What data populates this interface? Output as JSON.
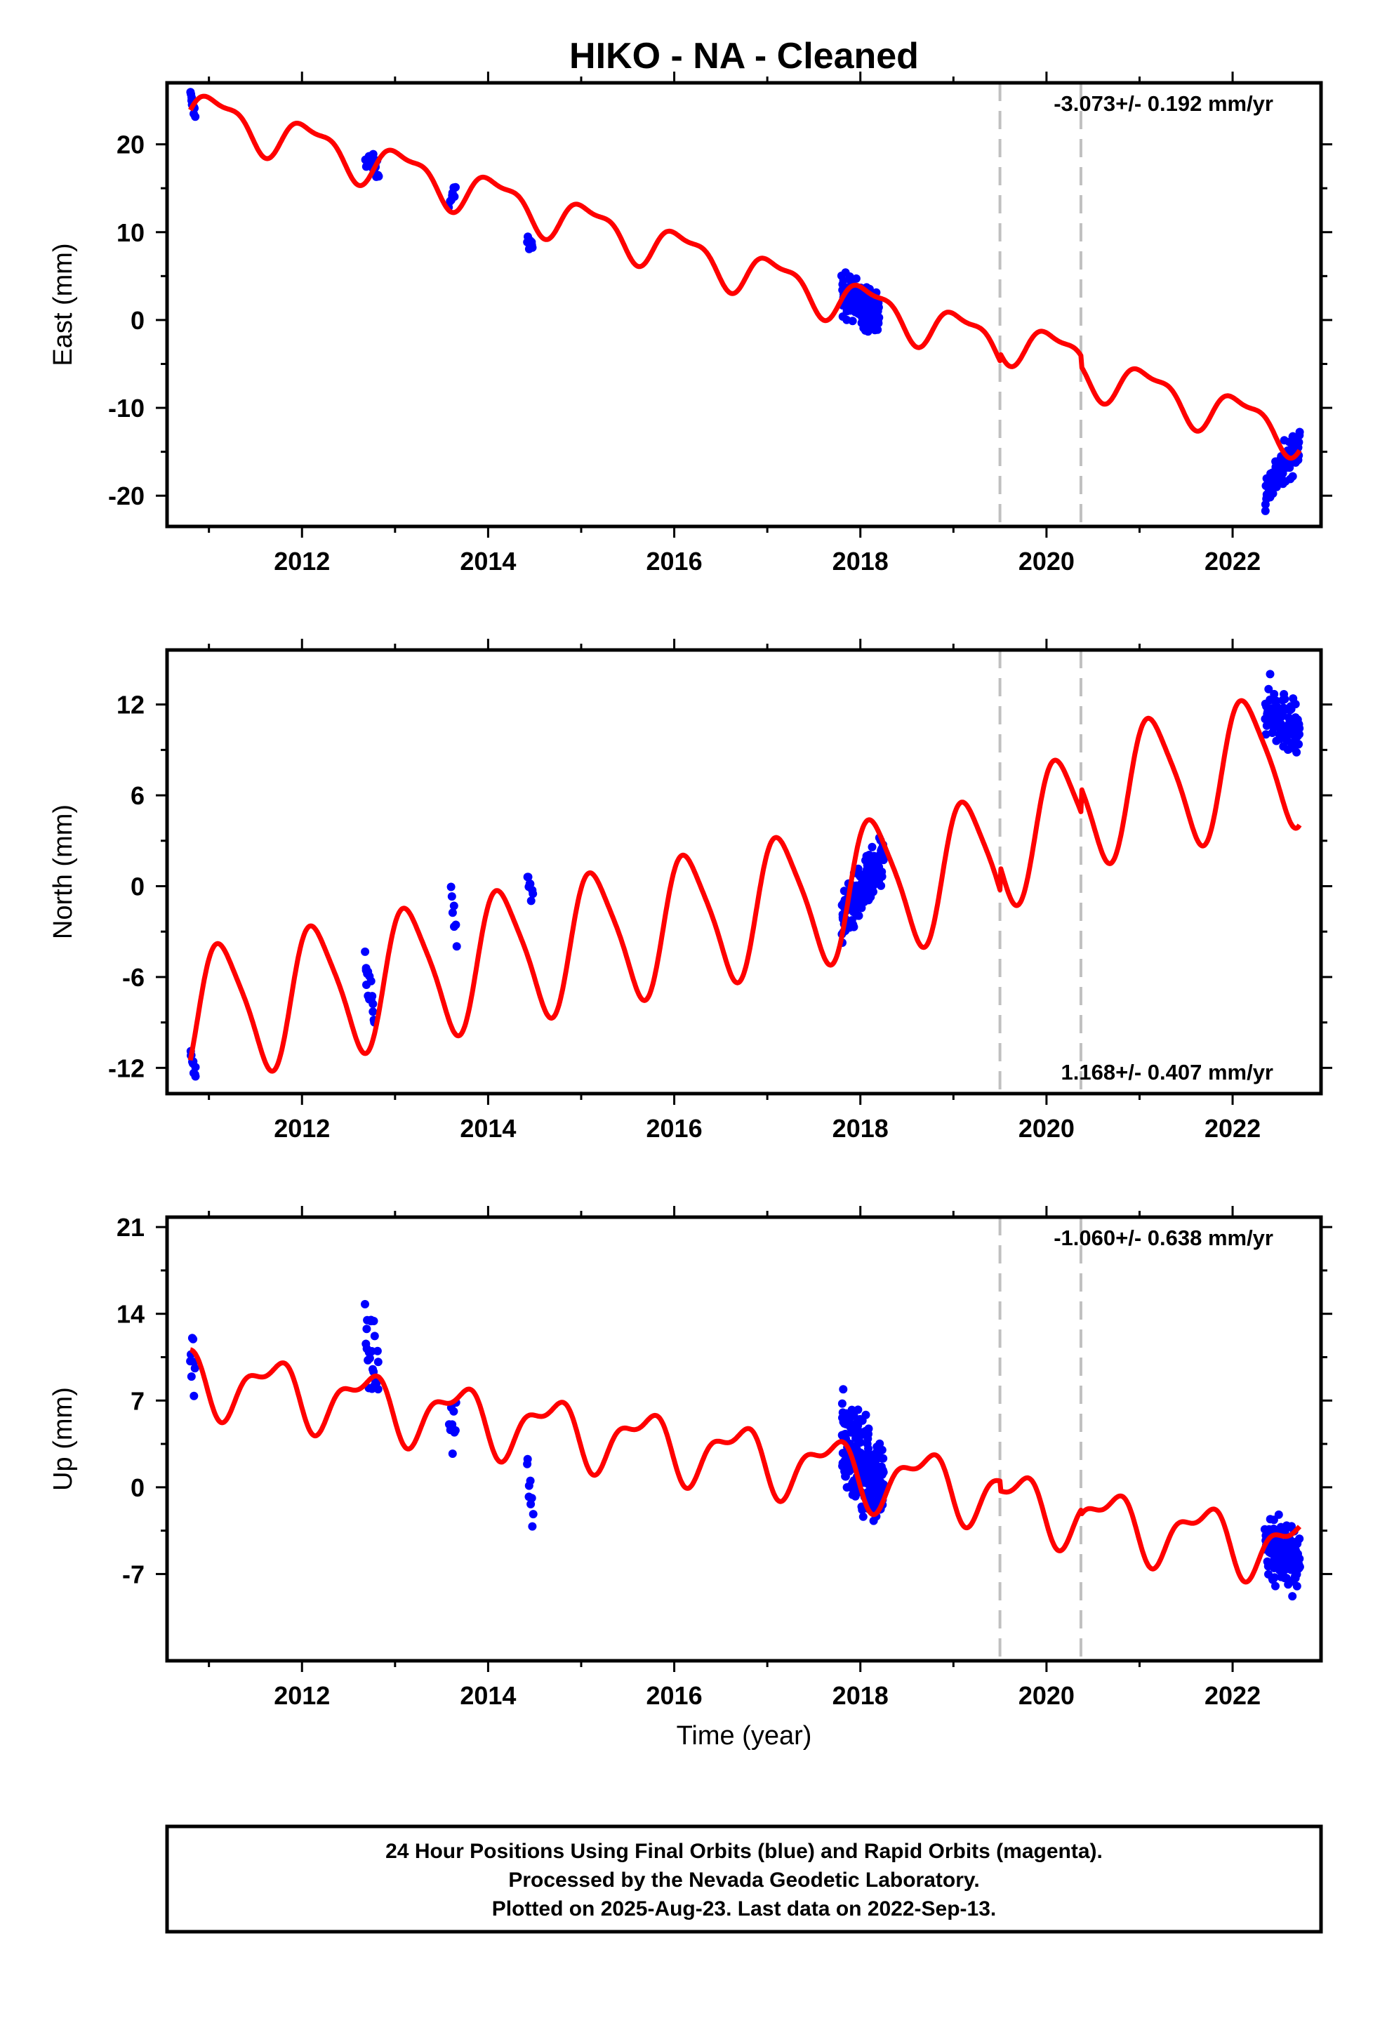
{
  "title": "HIKO  - NA - Cleaned",
  "colors": {
    "data": "#0000ff",
    "model": "#ff0000",
    "event_line": "#c0c0c0",
    "frame": "#000000"
  },
  "x_axis": {
    "label": "Time (year)",
    "ticks": [
      2012,
      2014,
      2016,
      2018,
      2020,
      2022
    ],
    "range": [
      2010.55,
      2022.95
    ]
  },
  "event_lines": [
    2019.5,
    2020.37
  ],
  "footer": {
    "lines": [
      "24 Hour Positions Using Final Orbits (blue) and Rapid Orbits (magenta).",
      "Processed by the Nevada Geodetic Laboratory.",
      "Plotted on 2025-Aug-23. Last data on 2022-Sep-13."
    ]
  },
  "chart_data": [
    {
      "type": "scatter",
      "component": "East",
      "ylabel": "East (mm)",
      "ylim": [
        -23.5,
        27
      ],
      "yticks": [
        -20,
        -10,
        0,
        10,
        20
      ],
      "rate": "-3.073+/- 0.192 mm/yr",
      "rate_position": "top-right",
      "data_clusters": [
        {
          "t0": 2010.8,
          "t1": 2010.85,
          "n": 10,
          "y0": 25.5,
          "y1": 23.5,
          "spread": 1.8
        },
        {
          "t0": 2012.68,
          "t1": 2012.82,
          "n": 22,
          "y0": 18.5,
          "y1": 17.0,
          "spread": 2.5
        },
        {
          "t0": 2013.58,
          "t1": 2013.65,
          "n": 8,
          "y0": 13.5,
          "y1": 15.0,
          "spread": 2.0
        },
        {
          "t0": 2014.42,
          "t1": 2014.48,
          "n": 8,
          "y0": 9.0,
          "y1": 8.0,
          "spread": 1.8
        },
        {
          "t0": 2017.8,
          "t1": 2018.2,
          "n": 180,
          "y0": 3.0,
          "y1": 0.5,
          "spread": 5.0
        },
        {
          "t0": 2022.35,
          "t1": 2022.72,
          "n": 110,
          "y0": -19.5,
          "y1": -14.0,
          "spread": 4.5
        }
      ],
      "model": {
        "t_ref": 2010.8,
        "offset": 24.0,
        "trend": -3.073,
        "annual_sin": 2.2,
        "annual_cos": -0.6,
        "semi_sin": 0.7,
        "semi_cos": 0.5,
        "steps": [
          {
            "t": 2019.5,
            "dy": 0.9
          },
          {
            "t": 2020.37,
            "dy": -1.2
          }
        ]
      }
    },
    {
      "type": "scatter",
      "component": "North",
      "ylabel": "North (mm)",
      "ylim": [
        -13.7,
        15.6
      ],
      "yticks": [
        -12,
        -6,
        0,
        6,
        12
      ],
      "rate": "1.168+/- 0.407 mm/yr",
      "rate_position": "bottom-right",
      "data_clusters": [
        {
          "t0": 2010.8,
          "t1": 2010.86,
          "n": 10,
          "y0": -11.0,
          "y1": -12.5,
          "spread": 1.8
        },
        {
          "t0": 2012.68,
          "t1": 2012.78,
          "n": 20,
          "y0": -5.0,
          "y1": -9.0,
          "spread": 2.5
        },
        {
          "t0": 2013.6,
          "t1": 2013.66,
          "n": 7,
          "y0": -0.5,
          "y1": -3.5,
          "spread": 2.0
        },
        {
          "t0": 2014.42,
          "t1": 2014.48,
          "n": 8,
          "y0": 1.0,
          "y1": -0.8,
          "spread": 1.5
        },
        {
          "t0": 2017.8,
          "t1": 2018.25,
          "n": 180,
          "y0": -2.0,
          "y1": 1.5,
          "spread": 3.6
        },
        {
          "t0": 2022.35,
          "t1": 2022.72,
          "n": 110,
          "y0": 12.0,
          "y1": 10.0,
          "spread": 4.0
        }
      ],
      "model": {
        "t_ref": 2010.8,
        "offset": -8.5,
        "trend": 1.168,
        "annual_sin": 3.6,
        "annual_cos": -2.4,
        "semi_sin": 0.5,
        "semi_cos": -0.6,
        "steps": [
          {
            "t": 2019.5,
            "dy": 1.6
          },
          {
            "t": 2020.37,
            "dy": 1.6
          }
        ]
      }
    },
    {
      "type": "scatter",
      "component": "Up",
      "ylabel": "Up (mm)",
      "ylim": [
        -14,
        21.8
      ],
      "yticks": [
        -7,
        0,
        7,
        14,
        21
      ],
      "rate": "-1.060+/- 0.638 mm/yr",
      "rate_position": "top-right",
      "data_clusters": [
        {
          "t0": 2010.8,
          "t1": 2010.85,
          "n": 8,
          "y0": 11.0,
          "y1": 9.0,
          "spread": 7.0
        },
        {
          "t0": 2012.68,
          "t1": 2012.82,
          "n": 24,
          "y0": 12.0,
          "y1": 9.0,
          "spread": 6.0
        },
        {
          "t0": 2013.58,
          "t1": 2013.66,
          "n": 9,
          "y0": 6.0,
          "y1": 4.0,
          "spread": 5.0
        },
        {
          "t0": 2014.42,
          "t1": 2014.48,
          "n": 9,
          "y0": 2.0,
          "y1": -2.0,
          "spread": 5.0
        },
        {
          "t0": 2017.8,
          "t1": 2018.25,
          "n": 200,
          "y0": 4.0,
          "y1": 0.0,
          "spread": 8.0
        },
        {
          "t0": 2022.35,
          "t1": 2022.72,
          "n": 130,
          "y0": -4.5,
          "y1": -6.0,
          "spread": 6.5
        }
      ],
      "model": {
        "t_ref": 2010.8,
        "offset": 8.8,
        "trend": -1.06,
        "annual_sin": -1.6,
        "annual_cos": 1.6,
        "semi_sin": 0.8,
        "semi_cos": 0.7,
        "steps": [
          {
            "t": 2019.5,
            "dy": -0.8
          },
          {
            "t": 2020.37,
            "dy": -0.4
          }
        ]
      }
    }
  ]
}
